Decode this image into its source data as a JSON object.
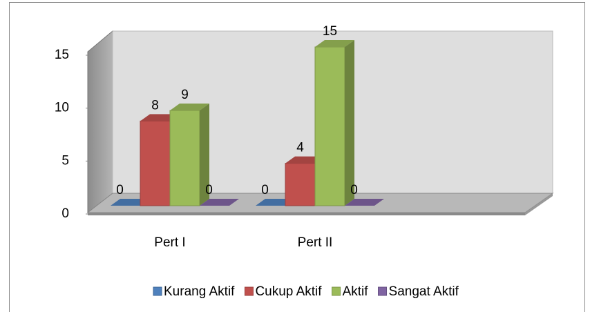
{
  "chart_data": {
    "type": "bar3d",
    "categories": [
      "Pert I",
      "Pert II"
    ],
    "series": [
      {
        "name": "Kurang Aktif",
        "color": "#4f81bd",
        "values": [
          0,
          0
        ]
      },
      {
        "name": "Cukup Aktif",
        "color": "#c0504d",
        "values": [
          8,
          4
        ]
      },
      {
        "name": "Aktif",
        "color": "#9bbb59",
        "values": [
          9,
          15
        ]
      },
      {
        "name": "Sangat Aktif",
        "color": "#8064a2",
        "values": [
          0,
          0
        ]
      }
    ],
    "ylim": [
      0,
      15
    ],
    "yticks": [
      0,
      5,
      10,
      15
    ],
    "legend": "bottom"
  }
}
